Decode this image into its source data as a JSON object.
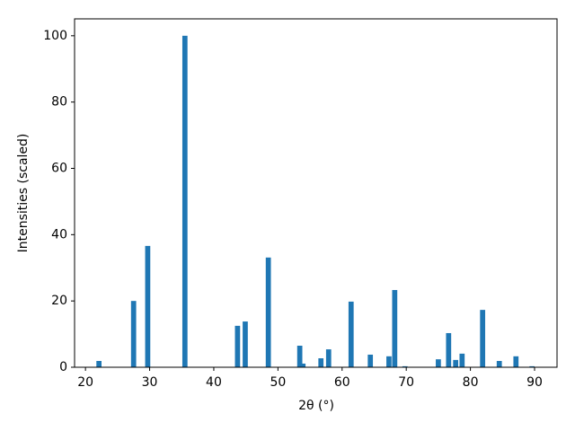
{
  "chart_data": {
    "type": "bar",
    "xlabel": "2θ (°)",
    "ylabel": "Intensities (scaled)",
    "x": [
      22.1,
      27.5,
      29.7,
      35.5,
      43.7,
      44.9,
      48.5,
      53.4,
      53.9,
      56.7,
      57.9,
      61.4,
      64.4,
      67.3,
      68.2,
      69.8,
      75.0,
      76.6,
      77.7,
      78.7,
      81.9,
      84.5,
      87.1,
      89.6
    ],
    "values": [
      1.9,
      20.0,
      36.6,
      100,
      12.5,
      13.8,
      33.1,
      6.5,
      1.1,
      2.7,
      5.4,
      19.8,
      3.8,
      3.3,
      23.3,
      0.3,
      2.4,
      10.3,
      2.2,
      4.1,
      17.3,
      1.9,
      3.3,
      0.3
    ],
    "color": "#1f77b4",
    "xlim": [
      18.3,
      93.5
    ],
    "ylim": [
      0,
      105.1
    ],
    "xticks": [
      20,
      30,
      40,
      50,
      60,
      70,
      80,
      90
    ],
    "yticks": [
      0,
      20,
      40,
      60,
      80,
      100
    ],
    "grid": false
  }
}
